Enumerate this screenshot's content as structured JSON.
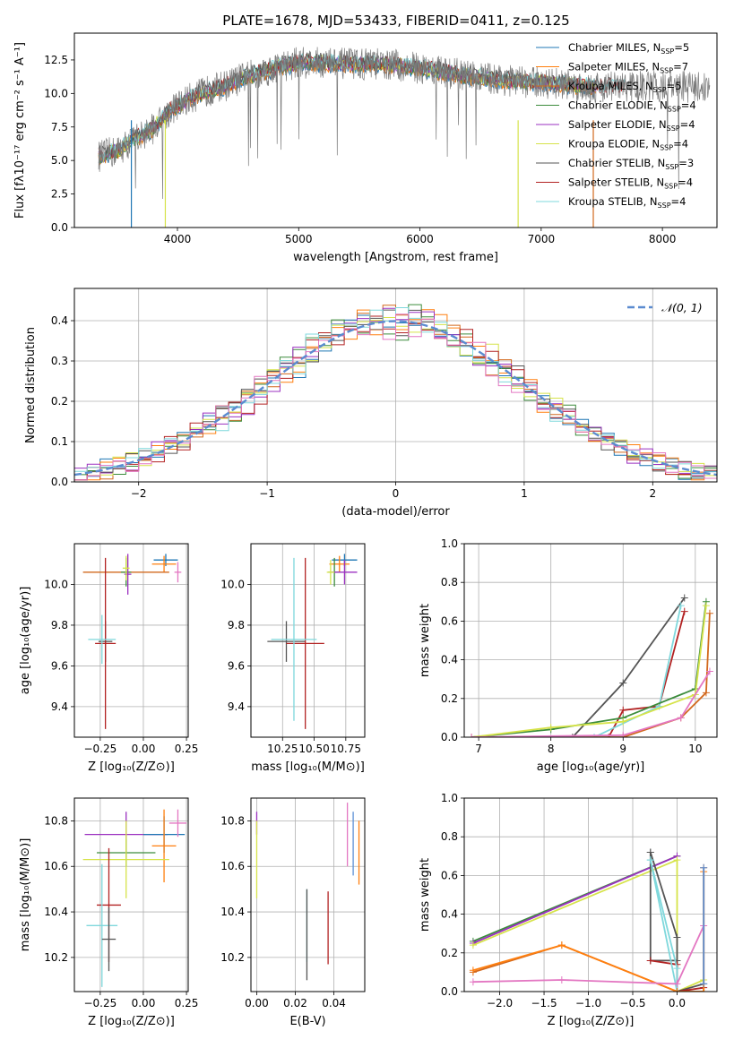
{
  "figure": {
    "title": "PLATE=1678, MJD=53433, FIBERID=0411, z=0.125"
  },
  "colors": {
    "Chabrier MILES": "#1f77b4",
    "Salpeter MILES": "#ff7f0e",
    "Kroupa MILES": "#d2691e",
    "Chabrier ELODIE": "#3c8c3c",
    "Salpeter ELODIE": "#9b30c0",
    "Kroupa ELODIE": "#d6e34a",
    "Chabrier STELIB": "#555555",
    "Salpeter STELIB": "#b22222",
    "Kroupa STELIB": "#7fd8dc",
    "extra_pink": "#e377c2",
    "extra_blue": "#5a8fd6",
    "gaussian": "#5b8bd0"
  },
  "chart_data": [
    {
      "id": "spectrum",
      "type": "line",
      "xlabel": "wavelength [Angstrom, rest frame]",
      "ylabel": "Flux [fλ10⁻¹⁷ erg cm⁻² s⁻¹ A⁻¹]",
      "xlim": [
        3150,
        8450
      ],
      "ylim": [
        0,
        14.5
      ],
      "xticks": [
        4000,
        5000,
        6000,
        7000,
        8000
      ],
      "xtick_labels": [
        "4000",
        "5000",
        "6000",
        "7000",
        "8000"
      ],
      "yticks": [
        0.0,
        2.5,
        5.0,
        7.5,
        10.0,
        12.5
      ],
      "ytick_labels": [
        "0.0",
        "2.5",
        "5.0",
        "7.5",
        "10.0",
        "12.5"
      ],
      "legend_position": "top-right",
      "legend": [
        {
          "name": "Chabrier MILES",
          "nssp": "5"
        },
        {
          "name": "Salpeter MILES",
          "nssp": "7"
        },
        {
          "name": "Kroupa MILES",
          "nssp": "5"
        },
        {
          "name": "Chabrier ELODIE",
          "nssp": "4"
        },
        {
          "name": "Salpeter ELODIE",
          "nssp": "4"
        },
        {
          "name": "Kroupa ELODIE",
          "nssp": "4"
        },
        {
          "name": "Chabrier STELIB",
          "nssp": "3"
        },
        {
          "name": "Salpeter STELIB",
          "nssp": "4"
        },
        {
          "name": "Kroupa STELIB",
          "nssp": "4"
        }
      ],
      "legend_suffix": "N",
      "legend_subscript": "SSP",
      "continuum": {
        "x": [
          3350,
          3500,
          3650,
          3800,
          3950,
          4100,
          4250,
          4400,
          4550,
          4700,
          4850,
          5000,
          5200,
          5400,
          5600,
          5800,
          6000,
          6200,
          6400,
          6600,
          6800,
          7000,
          7200,
          7400
        ],
        "y": [
          5.3,
          5.7,
          6.6,
          7.4,
          8.8,
          9.6,
          10.2,
          10.6,
          11.2,
          11.6,
          12.0,
          12.3,
          12.3,
          12.2,
          12.2,
          12.1,
          11.9,
          11.6,
          11.3,
          11.1,
          10.9,
          10.8,
          10.7,
          10.5
        ]
      },
      "dropouts": [
        {
          "x": 3620,
          "color_key": "Chabrier MILES"
        },
        {
          "x": 3900,
          "color_key": "Kroupa ELODIE"
        },
        {
          "x": 6810,
          "color_key": "Kroupa ELODIE"
        },
        {
          "x": 7430,
          "color_key": "Kroupa MILES"
        }
      ]
    },
    {
      "id": "residuals",
      "type": "histogram",
      "xlabel": "(data-model)/error",
      "ylabel": "Normed distribution",
      "xlim": [
        -2.5,
        2.5
      ],
      "ylim": [
        0,
        0.48
      ],
      "xticks": [
        -2,
        -1,
        0,
        1,
        2
      ],
      "xtick_labels": [
        "−2",
        "−1",
        "0",
        "1",
        "2"
      ],
      "yticks": [
        0.0,
        0.1,
        0.2,
        0.3,
        0.4
      ],
      "ytick_labels": [
        "0.0",
        "0.1",
        "0.2",
        "0.3",
        "0.4"
      ],
      "legend_label": "𝒩(0, 1)",
      "legend_position": "top-right",
      "gaussian": {
        "mean": 0,
        "sigma": 1
      }
    },
    {
      "id": "age_vs_Z",
      "type": "errorbar",
      "xlabel": "Z [log₁₀(Z/Z⊙)]",
      "ylabel": "age  [log₁₀(age/yr)]",
      "xlim": [
        -0.4,
        0.26
      ],
      "ylim": [
        9.25,
        10.2
      ],
      "xticks": [
        -0.25,
        0.0,
        0.25
      ],
      "xtick_labels": [
        "−0.25",
        "0.00",
        "0.25"
      ],
      "yticks": [
        9.4,
        9.6,
        9.8,
        10.0
      ],
      "ytick_labels": [
        "9.4",
        "9.6",
        "9.8",
        "10.0"
      ],
      "points": [
        {
          "key": "Chabrier MILES",
          "x": 0.13,
          "y": 10.12,
          "xerr": 0.07,
          "yerr": 0.03
        },
        {
          "key": "Salpeter MILES",
          "x": 0.12,
          "y": 10.1,
          "xerr": 0.07,
          "yerr": 0.04
        },
        {
          "key": "Kroupa MILES",
          "x": -0.1,
          "y": 10.06,
          "xerr": 0.25,
          "yerr": 0.02
        },
        {
          "key": "Chabrier ELODIE",
          "x": -0.1,
          "y": 10.06,
          "xerr": 0.03,
          "yerr": 0.07
        },
        {
          "key": "Salpeter ELODIE",
          "x": -0.09,
          "y": 10.05,
          "xerr": 0.02,
          "yerr": 0.1
        },
        {
          "key": "Kroupa ELODIE",
          "x": -0.1,
          "y": 10.08,
          "xerr": 0.02,
          "yerr": 0.06
        },
        {
          "key": "Chabrier STELIB",
          "x": -0.22,
          "y": 9.72,
          "xerr": 0.04,
          "yerr": 0.1
        },
        {
          "key": "Salpeter STELIB",
          "x": -0.22,
          "y": 9.71,
          "xerr": 0.06,
          "yerr": 0.42
        },
        {
          "key": "Kroupa STELIB",
          "x": -0.24,
          "y": 9.73,
          "xerr": 0.08,
          "yerr": 0.12
        },
        {
          "key": "extra_pink",
          "x": 0.2,
          "y": 10.06,
          "xerr": 0.02,
          "yerr": 0.05
        }
      ]
    },
    {
      "id": "age_vs_mass",
      "type": "errorbar",
      "xlabel": "mass [log₁₀(M/M⊙)]",
      "ylabel": "",
      "xlim": [
        10.0,
        10.9
      ],
      "ylim": [
        9.25,
        10.2
      ],
      "xticks": [
        10.25,
        10.5,
        10.75
      ],
      "xtick_labels": [
        "10.25",
        "10.50",
        "10.75"
      ],
      "yticks": [
        9.4,
        9.6,
        9.8,
        10.0
      ],
      "ytick_labels": [
        "9.4",
        "9.6",
        "9.8",
        "10.0"
      ],
      "points": [
        {
          "key": "Chabrier MILES",
          "x": 10.74,
          "y": 10.12,
          "xerr": 0.1,
          "yerr": 0.03
        },
        {
          "key": "Salpeter MILES",
          "x": 10.7,
          "y": 10.1,
          "xerr": 0.08,
          "yerr": 0.04
        },
        {
          "key": "Chabrier ELODIE",
          "x": 10.66,
          "y": 10.06,
          "xerr": 0.05,
          "yerr": 0.07
        },
        {
          "key": "Salpeter ELODIE",
          "x": 10.74,
          "y": 10.06,
          "xerr": 0.1,
          "yerr": 0.06
        },
        {
          "key": "Kroupa ELODIE",
          "x": 10.63,
          "y": 10.06,
          "xerr": 0.03,
          "yerr": 0.06
        },
        {
          "key": "Chabrier STELIB",
          "x": 10.28,
          "y": 9.72,
          "xerr": 0.15,
          "yerr": 0.1
        },
        {
          "key": "Salpeter STELIB",
          "x": 10.43,
          "y": 9.71,
          "xerr": 0.15,
          "yerr": 0.42
        },
        {
          "key": "Kroupa STELIB",
          "x": 10.34,
          "y": 9.73,
          "xerr": 0.18,
          "yerr": 0.4
        }
      ]
    },
    {
      "id": "mass_weight_vs_age",
      "type": "line",
      "xlabel": "age  [log₁₀(age/yr)]",
      "ylabel": "mass weight",
      "xlim": [
        6.8,
        10.3
      ],
      "ylim": [
        0,
        1.0
      ],
      "xticks": [
        7,
        8,
        9,
        10
      ],
      "xtick_labels": [
        "7",
        "8",
        "9",
        "10"
      ],
      "yticks": [
        0.0,
        0.2,
        0.4,
        0.6,
        0.8,
        1.0
      ],
      "ytick_labels": [
        "0.0",
        "0.2",
        "0.4",
        "0.6",
        "0.8",
        "1.0"
      ],
      "series": [
        {
          "key": "Chabrier STELIB",
          "x": [
            8.3,
            9.0,
            9.85
          ],
          "y": [
            0.0,
            0.28,
            0.72
          ]
        },
        {
          "key": "Salpeter STELIB",
          "x": [
            8.8,
            9.0,
            9.5,
            9.85
          ],
          "y": [
            0.0,
            0.14,
            0.16,
            0.65
          ]
        },
        {
          "key": "Kroupa STELIB",
          "x": [
            8.6,
            9.5,
            9.8
          ],
          "y": [
            0.0,
            0.16,
            0.68
          ]
        },
        {
          "key": "Chabrier ELODIE",
          "x": [
            6.9,
            8.0,
            9.0,
            10.0,
            10.15
          ],
          "y": [
            0.0,
            0.04,
            0.1,
            0.25,
            0.7
          ]
        },
        {
          "key": "Kroupa ELODIE",
          "x": [
            6.9,
            8.0,
            9.0,
            10.0,
            10.15
          ],
          "y": [
            0.0,
            0.05,
            0.08,
            0.22,
            0.68
          ]
        },
        {
          "key": "Kroupa MILES",
          "x": [
            6.9,
            9.0,
            9.8,
            10.15,
            10.2
          ],
          "y": [
            0.0,
            0.0,
            0.1,
            0.23,
            0.64
          ]
        },
        {
          "key": "extra_pink",
          "x": [
            6.9,
            9.0,
            9.8,
            10.2
          ],
          "y": [
            0.0,
            0.01,
            0.1,
            0.34
          ]
        }
      ]
    },
    {
      "id": "mass_vs_Z",
      "type": "errorbar",
      "xlabel": "Z [log₁₀(Z/Z⊙)]",
      "ylabel": "mass [log₁₀(M/M⊙)]",
      "xlim": [
        -0.4,
        0.26
      ],
      "ylim": [
        10.05,
        10.9
      ],
      "xticks": [
        -0.25,
        0.0,
        0.25
      ],
      "xtick_labels": [
        "−0.25",
        "0.00",
        "0.25"
      ],
      "yticks": [
        10.2,
        10.4,
        10.6,
        10.8
      ],
      "ytick_labels": [
        "10.2",
        "10.4",
        "10.6",
        "10.8"
      ],
      "points": [
        {
          "key": "Salpeter ELODIE",
          "x": -0.1,
          "y": 10.74,
          "xerr": 0.24,
          "yerr": 0.1
        },
        {
          "key": "Chabrier MILES",
          "x": 0.12,
          "y": 10.74,
          "xerr": 0.12,
          "yerr": 0.08
        },
        {
          "key": "extra_pink",
          "x": 0.2,
          "y": 10.79,
          "xerr": 0.05,
          "yerr": 0.06
        },
        {
          "key": "Salpeter MILES",
          "x": 0.12,
          "y": 10.69,
          "xerr": 0.07,
          "yerr": 0.16
        },
        {
          "key": "Chabrier ELODIE",
          "x": -0.1,
          "y": 10.66,
          "xerr": 0.17,
          "yerr": 0.06
        },
        {
          "key": "Kroupa ELODIE",
          "x": -0.1,
          "y": 10.63,
          "xerr": 0.25,
          "yerr": 0.17
        },
        {
          "key": "Salpeter STELIB",
          "x": -0.2,
          "y": 10.43,
          "xerr": 0.07,
          "yerr": 0.25
        },
        {
          "key": "Kroupa STELIB",
          "x": -0.24,
          "y": 10.34,
          "xerr": 0.09,
          "yerr": 0.27
        },
        {
          "key": "Chabrier STELIB",
          "x": -0.2,
          "y": 10.28,
          "xerr": 0.04,
          "yerr": 0.14
        }
      ]
    },
    {
      "id": "mass_vs_EBV",
      "type": "errorbar",
      "xlabel": "E(B-V)",
      "ylabel": "",
      "xlim": [
        -0.003,
        0.056
      ],
      "ylim": [
        10.05,
        10.9
      ],
      "xticks": [
        0.0,
        0.02,
        0.04
      ],
      "xtick_labels": [
        "0.00",
        "0.02",
        "0.04"
      ],
      "yticks": [
        10.2,
        10.4,
        10.6,
        10.8
      ],
      "ytick_labels": [
        "10.2",
        "10.4",
        "10.6",
        "10.8"
      ],
      "points": [
        {
          "key": "Salpeter ELODIE",
          "x": 0.0,
          "y": 10.79,
          "xerr": 0,
          "yerr": 0.05
        },
        {
          "key": "Kroupa ELODIE",
          "x": 0.0,
          "y": 10.63,
          "xerr": 0,
          "yerr": 0.17
        },
        {
          "key": "extra_pink",
          "x": 0.047,
          "y": 10.74,
          "xerr": 0,
          "yerr": 0.14
        },
        {
          "key": "extra_blue",
          "x": 0.05,
          "y": 10.7,
          "xerr": 0,
          "yerr": 0.14
        },
        {
          "key": "Salpeter MILES",
          "x": 0.053,
          "y": 10.66,
          "xerr": 0,
          "yerr": 0.14
        },
        {
          "key": "Kroupa STELIB",
          "x": 0.026,
          "y": 10.34,
          "xerr": 0,
          "yerr": 0.16
        },
        {
          "key": "Chabrier STELIB",
          "x": 0.026,
          "y": 10.3,
          "xerr": 0,
          "yerr": 0.2
        },
        {
          "key": "Salpeter STELIB",
          "x": 0.037,
          "y": 10.33,
          "xerr": 0,
          "yerr": 0.16
        }
      ]
    },
    {
      "id": "mass_weight_vs_Z",
      "type": "line",
      "xlabel": "Z [log₁₀(Z/Z⊙)]",
      "ylabel": "mass weight",
      "xlim": [
        -2.4,
        0.45
      ],
      "ylim": [
        0,
        1.0
      ],
      "xticks": [
        -2.0,
        -1.5,
        -1.0,
        -0.5,
        0.0
      ],
      "xtick_labels": [
        "−2.0",
        "−1.5",
        "−1.0",
        "−0.5",
        "0.0"
      ],
      "yticks": [
        0.0,
        0.2,
        0.4,
        0.6,
        0.8,
        1.0
      ],
      "ytick_labels": [
        "0.0",
        "0.2",
        "0.4",
        "0.6",
        "0.8",
        "1.0"
      ],
      "series": [
        {
          "key": "Chabrier ELODIE",
          "x": [
            -2.3,
            0.0
          ],
          "y": [
            0.26,
            0.7
          ]
        },
        {
          "key": "Salpeter ELODIE",
          "x": [
            -2.3,
            0.0
          ],
          "y": [
            0.25,
            0.7
          ]
        },
        {
          "key": "Kroupa ELODIE",
          "x": [
            -2.3,
            0.0,
            0.0,
            0.3
          ],
          "y": [
            0.24,
            0.68,
            0.0,
            0.06
          ]
        },
        {
          "key": "Chabrier STELIB",
          "x": [
            -0.3,
            0.0,
            0.0,
            -0.3,
            -0.3,
            0.0,
            0.0,
            0.3
          ],
          "y": [
            0.72,
            0.28,
            0.16,
            0.16,
            0.72,
            0.28,
            0.0,
            0.04
          ]
        },
        {
          "key": "Salpeter STELIB",
          "x": [
            -0.3,
            0.0,
            0.0,
            0.3
          ],
          "y": [
            0.16,
            0.14,
            0.0,
            0.02
          ]
        },
        {
          "key": "Kroupa STELIB",
          "x": [
            -0.3,
            0.0,
            0.0,
            -0.3
          ],
          "y": [
            0.68,
            0.12,
            0.0,
            0.68
          ]
        },
        {
          "key": "Kroupa MILES",
          "x": [
            -2.3,
            -1.3,
            0.0,
            0.3,
            0.3
          ],
          "y": [
            0.1,
            0.24,
            0.0,
            0.0,
            0.64
          ]
        },
        {
          "key": "Salpeter MILES",
          "x": [
            -2.3,
            -1.3,
            0.0,
            0.3,
            0.3
          ],
          "y": [
            0.11,
            0.24,
            0.0,
            0.0,
            0.62
          ]
        },
        {
          "key": "extra_pink",
          "x": [
            -2.3,
            -1.3,
            0.0,
            0.3
          ],
          "y": [
            0.05,
            0.06,
            0.04,
            0.34
          ]
        },
        {
          "key": "extra_blue",
          "x": [
            0.3,
            0.3
          ],
          "y": [
            0.04,
            0.64
          ]
        }
      ]
    }
  ]
}
